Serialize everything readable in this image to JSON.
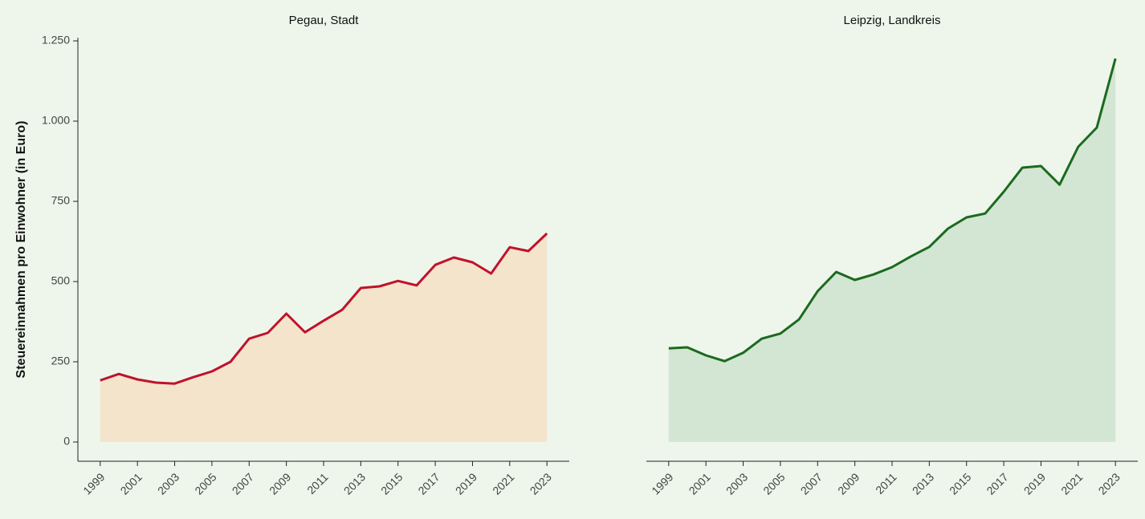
{
  "chart_data": [
    {
      "type": "area",
      "title": "Pegau, Stadt",
      "ylabel": "Steuereinnahmen pro Einwohner (in Euro)",
      "x": [
        1999,
        2000,
        2001,
        2002,
        2003,
        2004,
        2005,
        2006,
        2007,
        2008,
        2009,
        2010,
        2011,
        2012,
        2013,
        2014,
        2015,
        2016,
        2017,
        2018,
        2019,
        2020,
        2021,
        2022,
        2023
      ],
      "values": [
        192,
        212,
        195,
        185,
        182,
        202,
        220,
        250,
        322,
        340,
        400,
        342,
        378,
        412,
        480,
        485,
        502,
        488,
        552,
        575,
        560,
        525,
        607,
        595,
        650
      ],
      "color": "#c0122c",
      "fill": "#f5e4cc",
      "xlim": [
        1997.8,
        2024.2
      ],
      "xticks": [
        1999,
        2001,
        2003,
        2005,
        2007,
        2009,
        2011,
        2013,
        2015,
        2017,
        2019,
        2021,
        2023
      ],
      "ylim": [
        -60,
        1260
      ],
      "yticks": [
        0,
        250,
        500,
        750,
        {
          "value": 1000,
          "label": "1.000"
        },
        {
          "value": 1250,
          "label": "1.250"
        }
      ]
    },
    {
      "type": "area",
      "title": "Leipzig, Landkreis",
      "x": [
        1999,
        2000,
        2001,
        2002,
        2003,
        2004,
        2005,
        2006,
        2007,
        2008,
        2009,
        2010,
        2011,
        2012,
        2013,
        2014,
        2015,
        2016,
        2017,
        2018,
        2019,
        2020,
        2021,
        2022,
        2023
      ],
      "values": [
        292,
        295,
        270,
        252,
        278,
        322,
        338,
        382,
        470,
        530,
        505,
        522,
        545,
        578,
        608,
        665,
        700,
        712,
        780,
        855,
        860,
        802,
        920,
        980,
        1195
      ],
      "color": "#1b6a1e",
      "fill": "#d3e5d3",
      "xlim": [
        1997.8,
        2024.2
      ],
      "xticks": [
        1999,
        2001,
        2003,
        2005,
        2007,
        2009,
        2011,
        2013,
        2015,
        2017,
        2019,
        2021,
        2023
      ],
      "ylim": [
        -60,
        1260
      ]
    }
  ]
}
